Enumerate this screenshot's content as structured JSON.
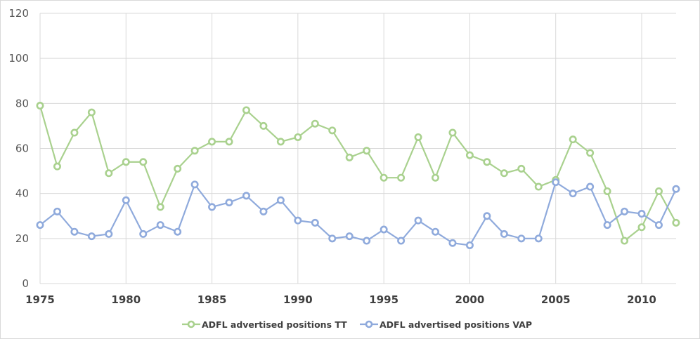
{
  "chart_data": {
    "type": "line",
    "title": "",
    "xlabel": "",
    "ylabel": "",
    "ylim": [
      0,
      120
    ],
    "yticks": [
      0,
      20,
      40,
      60,
      80,
      100,
      120
    ],
    "xlim": [
      1975,
      2012
    ],
    "xticks": [
      1975,
      1980,
      1985,
      1990,
      1995,
      2000,
      2005,
      2010
    ],
    "grid": true,
    "legend_position": "bottom",
    "x": [
      1975,
      1976,
      1977,
      1978,
      1979,
      1980,
      1981,
      1982,
      1983,
      1984,
      1985,
      1986,
      1987,
      1988,
      1989,
      1990,
      1991,
      1992,
      1993,
      1994,
      1995,
      1996,
      1997,
      1998,
      1999,
      2000,
      2001,
      2002,
      2003,
      2004,
      2005,
      2006,
      2007,
      2008,
      2009,
      2010,
      2011,
      2012
    ],
    "series": [
      {
        "name": "ADFL advertised positions TT",
        "color": "#a9d18e",
        "values": [
          79,
          52,
          67,
          76,
          49,
          54,
          54,
          34,
          51,
          59,
          63,
          63,
          77,
          70,
          63,
          65,
          71,
          68,
          56,
          59,
          47,
          47,
          65,
          47,
          67,
          57,
          54,
          49,
          51,
          43,
          46,
          64,
          58,
          41,
          19,
          25,
          41,
          27
        ]
      },
      {
        "name": "ADFL advertised positions VAP",
        "color": "#8faadc",
        "values": [
          26,
          32,
          23,
          21,
          22,
          37,
          22,
          26,
          23,
          44,
          34,
          36,
          39,
          32,
          37,
          28,
          27,
          20,
          21,
          19,
          24,
          19,
          28,
          23,
          18,
          17,
          30,
          22,
          20,
          20,
          45,
          40,
          43,
          26,
          32,
          31,
          26,
          42
        ]
      }
    ]
  }
}
